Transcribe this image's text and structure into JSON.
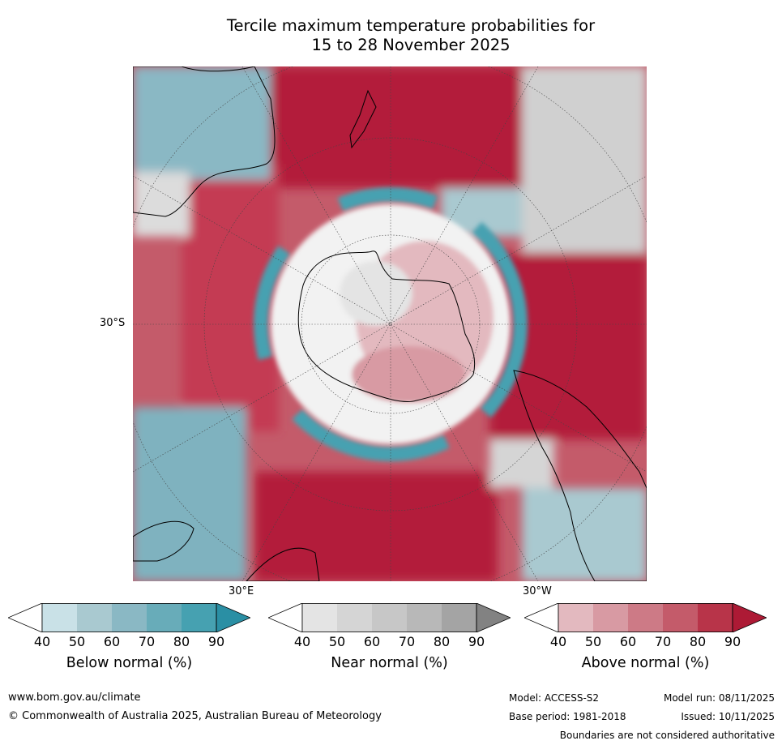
{
  "title": {
    "line1": "Tercile maximum temperature probabilities for",
    "line2": "15 to 28 November 2025"
  },
  "map": {
    "labels": {
      "lat_30s": "30°S",
      "lon_30e": "30°E",
      "lon_30w": "30°W"
    }
  },
  "colorbars": [
    {
      "label": "Below normal (%)",
      "ticks": [
        "40",
        "50",
        "60",
        "70",
        "80",
        "90"
      ],
      "colors": [
        "#ffffff",
        "#c9e1e7",
        "#a9c9d0",
        "#8ab8c4",
        "#68acb9",
        "#46a1b1",
        "#2a8fa4"
      ]
    },
    {
      "label": "Near normal (%)",
      "ticks": [
        "40",
        "50",
        "60",
        "70",
        "80",
        "90"
      ],
      "colors": [
        "#ffffff",
        "#e4e4e4",
        "#d5d5d5",
        "#c7c7c7",
        "#b8b8b8",
        "#a4a4a4",
        "#828282"
      ]
    },
    {
      "label": "Above normal (%)",
      "ticks": [
        "40",
        "50",
        "60",
        "70",
        "80",
        "90"
      ],
      "colors": [
        "#ffffff",
        "#e3b9bf",
        "#d89aa3",
        "#cd7a86",
        "#c45b6a",
        "#b83449",
        "#ad1a35"
      ]
    }
  ],
  "footer": {
    "website": "www.bom.gov.au/climate",
    "copyright": "© Commonwealth of Australia 2025, Australian Bureau of Meteorology",
    "model": "Model: ACCESS-S2",
    "model_run": "Model run: 08/11/2025",
    "base_period": "Base period: 1981-2018",
    "issued": "Issued: 10/11/2025",
    "disclaimer": "Boundaries are not considered authoritative"
  }
}
